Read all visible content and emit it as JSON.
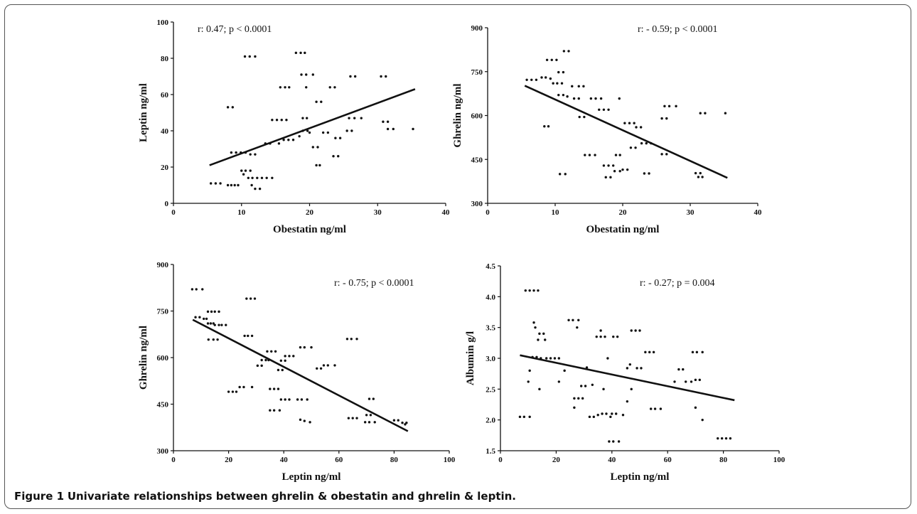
{
  "caption": {
    "label": "Figure 1",
    "text": "Univariate relationships between ghrelin & obestatin and ghrelin & leptin."
  },
  "chart_data": [
    {
      "type": "scatter",
      "xlabel": "Obestatin ng/ml",
      "ylabel": "Leptin ng/ml",
      "annotation": "r: 0.47; p < 0.0001",
      "xlim": [
        0,
        40
      ],
      "ylim": [
        0,
        100
      ],
      "xticks": [
        0,
        10,
        20,
        30,
        40
      ],
      "yticks": [
        0,
        20,
        40,
        60,
        80,
        100
      ],
      "trendline": [
        [
          5.3,
          21
        ],
        [
          35.5,
          63
        ]
      ],
      "points": [
        [
          5.5,
          11
        ],
        [
          6.2,
          11
        ],
        [
          6.9,
          11
        ],
        [
          8,
          53
        ],
        [
          8.7,
          53
        ],
        [
          8,
          10
        ],
        [
          8.5,
          10
        ],
        [
          9,
          10
        ],
        [
          9.5,
          10
        ],
        [
          8.5,
          28
        ],
        [
          9.2,
          28
        ],
        [
          9.9,
          28
        ],
        [
          10.6,
          28
        ],
        [
          11.3,
          27
        ],
        [
          12,
          27
        ],
        [
          10,
          18
        ],
        [
          10.6,
          18
        ],
        [
          11.3,
          18
        ],
        [
          10.3,
          16
        ],
        [
          11,
          14
        ],
        [
          11.6,
          14
        ],
        [
          12.3,
          14
        ],
        [
          13,
          14
        ],
        [
          13.7,
          14
        ],
        [
          14.5,
          14
        ],
        [
          11.5,
          10
        ],
        [
          12,
          8
        ],
        [
          12.7,
          8
        ],
        [
          10.5,
          81
        ],
        [
          11.2,
          81
        ],
        [
          12,
          81
        ],
        [
          13.5,
          33
        ],
        [
          14.2,
          33
        ],
        [
          14.5,
          46
        ],
        [
          15.2,
          46
        ],
        [
          15.9,
          46
        ],
        [
          16.6,
          46
        ],
        [
          15.5,
          33
        ],
        [
          16.2,
          35
        ],
        [
          16.9,
          35
        ],
        [
          17.6,
          35
        ],
        [
          15.7,
          64
        ],
        [
          16.4,
          64
        ],
        [
          17,
          64
        ],
        [
          18,
          83
        ],
        [
          18.7,
          83
        ],
        [
          19.3,
          83
        ],
        [
          18.5,
          37
        ],
        [
          19,
          40
        ],
        [
          19.7,
          40
        ],
        [
          20,
          39
        ],
        [
          18.8,
          71
        ],
        [
          19.5,
          71
        ],
        [
          20.5,
          71
        ],
        [
          19,
          47
        ],
        [
          19.6,
          47
        ],
        [
          19.5,
          64
        ],
        [
          20.5,
          31
        ],
        [
          21.2,
          31
        ],
        [
          21,
          21
        ],
        [
          21.5,
          21
        ],
        [
          21,
          56
        ],
        [
          21.7,
          56
        ],
        [
          22,
          39
        ],
        [
          22.7,
          39
        ],
        [
          23,
          64
        ],
        [
          23.7,
          64
        ],
        [
          23.5,
          26
        ],
        [
          24.2,
          26
        ],
        [
          23.8,
          36
        ],
        [
          24.5,
          36
        ],
        [
          25.5,
          40
        ],
        [
          26.2,
          40
        ],
        [
          25.8,
          47
        ],
        [
          26.6,
          47
        ],
        [
          26,
          70
        ],
        [
          26.7,
          70
        ],
        [
          27.6,
          47
        ],
        [
          30.5,
          70
        ],
        [
          31.2,
          70
        ],
        [
          30.8,
          45
        ],
        [
          31.5,
          45
        ],
        [
          31.5,
          41
        ],
        [
          32.3,
          41
        ],
        [
          35.2,
          41
        ]
      ]
    },
    {
      "type": "scatter",
      "xlabel": "Obestatin ng/ml",
      "ylabel": "Ghrelin ng/ml",
      "annotation": "r: - 0.59; p < 0.0001",
      "xlim": [
        0,
        40
      ],
      "ylim": [
        300,
        900
      ],
      "xticks": [
        0,
        10,
        20,
        30,
        40
      ],
      "yticks": [
        300,
        450,
        600,
        750,
        900
      ],
      "trendline": [
        [
          5.5,
          702
        ],
        [
          35.5,
          387
        ]
      ],
      "points": [
        [
          5.8,
          722
        ],
        [
          6.5,
          722
        ],
        [
          7.2,
          722
        ],
        [
          8,
          730
        ],
        [
          8.6,
          730
        ],
        [
          9.3,
          726
        ],
        [
          8.4,
          563
        ],
        [
          9,
          563
        ],
        [
          8.8,
          790
        ],
        [
          9.5,
          790
        ],
        [
          10.2,
          790
        ],
        [
          9.7,
          710
        ],
        [
          10.3,
          710
        ],
        [
          11,
          710
        ],
        [
          10.5,
          748
        ],
        [
          11.2,
          748
        ],
        [
          11.3,
          820
        ],
        [
          12,
          820
        ],
        [
          10.5,
          670
        ],
        [
          11.2,
          670
        ],
        [
          11.8,
          665
        ],
        [
          10.7,
          400
        ],
        [
          11.5,
          400
        ],
        [
          12.5,
          700
        ],
        [
          13.5,
          700
        ],
        [
          14.2,
          700
        ],
        [
          12.8,
          658
        ],
        [
          13.5,
          658
        ],
        [
          13.6,
          595
        ],
        [
          14.3,
          595
        ],
        [
          14.4,
          465
        ],
        [
          15.1,
          465
        ],
        [
          15.9,
          465
        ],
        [
          15.3,
          658
        ],
        [
          16,
          658
        ],
        [
          16.8,
          658
        ],
        [
          16.5,
          620
        ],
        [
          17.2,
          620
        ],
        [
          17.9,
          620
        ],
        [
          17.2,
          429
        ],
        [
          17.9,
          429
        ],
        [
          18.6,
          429
        ],
        [
          17.5,
          389
        ],
        [
          18.2,
          389
        ],
        [
          18.8,
          410
        ],
        [
          19.6,
          410
        ],
        [
          19.5,
          658
        ],
        [
          19,
          465
        ],
        [
          19.6,
          465
        ],
        [
          20,
          415
        ],
        [
          20.7,
          415
        ],
        [
          20.3,
          574
        ],
        [
          21,
          574
        ],
        [
          21.7,
          574
        ],
        [
          22,
          560
        ],
        [
          22.7,
          560
        ],
        [
          21.2,
          490
        ],
        [
          21.9,
          490
        ],
        [
          22.8,
          505
        ],
        [
          23.5,
          505
        ],
        [
          23.2,
          402
        ],
        [
          23.9,
          402
        ],
        [
          24.2,
          505
        ],
        [
          25.8,
          590
        ],
        [
          26.5,
          590
        ],
        [
          26.2,
          632
        ],
        [
          26.9,
          632
        ],
        [
          27.9,
          632
        ],
        [
          25.8,
          468
        ],
        [
          26.5,
          468
        ],
        [
          30.8,
          403
        ],
        [
          31.5,
          403
        ],
        [
          31.2,
          390
        ],
        [
          31.8,
          390
        ],
        [
          31.5,
          608
        ],
        [
          32.2,
          608
        ],
        [
          35.2,
          608
        ]
      ]
    },
    {
      "type": "scatter",
      "xlabel": "Leptin ng/ml",
      "ylabel": "Ghrelin ng/ml",
      "annotation": "r: - 0.75; p < 0.0001",
      "xlim": [
        0,
        100
      ],
      "ylim": [
        300,
        900
      ],
      "xticks": [
        0,
        20,
        40,
        60,
        80,
        100
      ],
      "yticks": [
        300,
        450,
        600,
        750,
        900
      ],
      "trendline": [
        [
          7,
          722
        ],
        [
          85,
          363
        ]
      ],
      "points": [
        [
          6.8,
          820
        ],
        [
          8.3,
          820
        ],
        [
          10.5,
          820
        ],
        [
          8,
          730
        ],
        [
          9.5,
          730
        ],
        [
          11,
          725
        ],
        [
          12,
          725
        ],
        [
          12.5,
          710
        ],
        [
          13.5,
          710
        ],
        [
          14.5,
          710
        ],
        [
          12.5,
          748
        ],
        [
          13.8,
          748
        ],
        [
          15,
          748
        ],
        [
          16.5,
          748
        ],
        [
          15,
          705
        ],
        [
          16.5,
          705
        ],
        [
          17.5,
          705
        ],
        [
          19,
          705
        ],
        [
          12.7,
          658
        ],
        [
          14.5,
          658
        ],
        [
          16,
          658
        ],
        [
          20,
          490
        ],
        [
          21.5,
          490
        ],
        [
          22.8,
          490
        ],
        [
          24,
          505
        ],
        [
          25.5,
          505
        ],
        [
          28.5,
          505
        ],
        [
          25.8,
          670
        ],
        [
          27,
          670
        ],
        [
          28.5,
          670
        ],
        [
          26.5,
          790
        ],
        [
          28,
          790
        ],
        [
          29.5,
          790
        ],
        [
          30.5,
          574
        ],
        [
          32,
          574
        ],
        [
          32,
          592
        ],
        [
          33.5,
          592
        ],
        [
          34.5,
          592
        ],
        [
          34,
          620
        ],
        [
          35.5,
          620
        ],
        [
          37,
          620
        ],
        [
          35,
          499
        ],
        [
          36.5,
          499
        ],
        [
          38,
          499
        ],
        [
          35,
          430
        ],
        [
          36.5,
          430
        ],
        [
          38.5,
          430
        ],
        [
          38,
          560
        ],
        [
          39.5,
          560
        ],
        [
          39,
          590
        ],
        [
          40.5,
          590
        ],
        [
          39,
          465
        ],
        [
          40.5,
          465
        ],
        [
          42,
          465
        ],
        [
          40.5,
          605
        ],
        [
          42,
          605
        ],
        [
          43.5,
          605
        ],
        [
          46,
          633
        ],
        [
          47.5,
          633
        ],
        [
          50,
          633
        ],
        [
          45,
          465
        ],
        [
          46.5,
          465
        ],
        [
          48.5,
          465
        ],
        [
          46,
          400
        ],
        [
          47.5,
          396
        ],
        [
          49.5,
          392
        ],
        [
          52,
          565
        ],
        [
          53.5,
          565
        ],
        [
          54.5,
          575
        ],
        [
          56,
          575
        ],
        [
          58.5,
          575
        ],
        [
          63,
          660
        ],
        [
          64.5,
          660
        ],
        [
          66.5,
          660
        ],
        [
          63.5,
          405
        ],
        [
          65,
          405
        ],
        [
          66.5,
          405
        ],
        [
          69.5,
          392
        ],
        [
          71,
          392
        ],
        [
          73,
          392
        ],
        [
          71,
          467
        ],
        [
          72.5,
          467
        ],
        [
          70,
          415
        ],
        [
          71.5,
          415
        ],
        [
          80,
          398
        ],
        [
          81.5,
          398
        ],
        [
          83,
          390
        ],
        [
          84.5,
          390
        ],
        [
          84,
          385
        ]
      ]
    },
    {
      "type": "scatter",
      "xlabel": "Leptin ng/ml",
      "ylabel": "Albumin g/l",
      "annotation": "r: - 0.27; p = 0.004",
      "xlim": [
        0,
        100
      ],
      "ylim": [
        1.5,
        4.5
      ],
      "xticks": [
        0,
        20,
        40,
        60,
        80,
        100
      ],
      "yticks": [
        1.5,
        2.0,
        2.5,
        3.0,
        3.5,
        4.0,
        4.5
      ],
      "trendline": [
        [
          7,
          3.05
        ],
        [
          84,
          2.32
        ]
      ],
      "points": [
        [
          7,
          2.05
        ],
        [
          8.5,
          2.05
        ],
        [
          10.5,
          2.05
        ],
        [
          9,
          4.1
        ],
        [
          10.5,
          4.1
        ],
        [
          12,
          4.1
        ],
        [
          13.5,
          4.1
        ],
        [
          10,
          2.62
        ],
        [
          10.5,
          2.8
        ],
        [
          11.5,
          3.02
        ],
        [
          13,
          3.02
        ],
        [
          14.5,
          3.0
        ],
        [
          12,
          3.58
        ],
        [
          12.5,
          3.5
        ],
        [
          13.5,
          3.3
        ],
        [
          14,
          3.4
        ],
        [
          15.5,
          3.4
        ],
        [
          16,
          3.3
        ],
        [
          14,
          2.5
        ],
        [
          16.5,
          3.0
        ],
        [
          18,
          3.0
        ],
        [
          19.5,
          3.0
        ],
        [
          21,
          3.0
        ],
        [
          21,
          2.62
        ],
        [
          23,
          2.8
        ],
        [
          24.5,
          3.62
        ],
        [
          26,
          3.62
        ],
        [
          28,
          3.62
        ],
        [
          27.5,
          3.5
        ],
        [
          26.5,
          2.35
        ],
        [
          28,
          2.35
        ],
        [
          29.5,
          2.35
        ],
        [
          26.5,
          2.2
        ],
        [
          29,
          2.55
        ],
        [
          30.5,
          2.55
        ],
        [
          31,
          2.85
        ],
        [
          32,
          2.05
        ],
        [
          33.5,
          2.05
        ],
        [
          35,
          2.08
        ],
        [
          33,
          2.57
        ],
        [
          34.5,
          3.35
        ],
        [
          36,
          3.35
        ],
        [
          37.5,
          3.35
        ],
        [
          36,
          3.45
        ],
        [
          37,
          2.5
        ],
        [
          36.5,
          2.1
        ],
        [
          38,
          2.1
        ],
        [
          39.5,
          2.05
        ],
        [
          40,
          2.1
        ],
        [
          41.5,
          2.1
        ],
        [
          39,
          1.65
        ],
        [
          40.5,
          1.65
        ],
        [
          42.5,
          1.65
        ],
        [
          38.5,
          3.0
        ],
        [
          40.5,
          3.35
        ],
        [
          42,
          3.35
        ],
        [
          44,
          2.08
        ],
        [
          45.5,
          2.84
        ],
        [
          46.5,
          2.9
        ],
        [
          47,
          3.45
        ],
        [
          48.5,
          3.45
        ],
        [
          50,
          3.45
        ],
        [
          45.5,
          2.3
        ],
        [
          47,
          2.5
        ],
        [
          49,
          2.84
        ],
        [
          50.5,
          2.84
        ],
        [
          52,
          3.1
        ],
        [
          53.5,
          3.1
        ],
        [
          55,
          3.1
        ],
        [
          54,
          2.18
        ],
        [
          55.5,
          2.18
        ],
        [
          57.5,
          2.18
        ],
        [
          62.5,
          2.62
        ],
        [
          64,
          2.82
        ],
        [
          65.5,
          2.82
        ],
        [
          66.5,
          2.62
        ],
        [
          69,
          3.1
        ],
        [
          70.5,
          3.1
        ],
        [
          72.5,
          3.1
        ],
        [
          68.5,
          2.62
        ],
        [
          70,
          2.65
        ],
        [
          71.5,
          2.65
        ],
        [
          72.5,
          2.0
        ],
        [
          70,
          2.2
        ],
        [
          78,
          1.7
        ],
        [
          79.5,
          1.7
        ],
        [
          81,
          1.7
        ],
        [
          82.5,
          1.7
        ]
      ]
    }
  ]
}
